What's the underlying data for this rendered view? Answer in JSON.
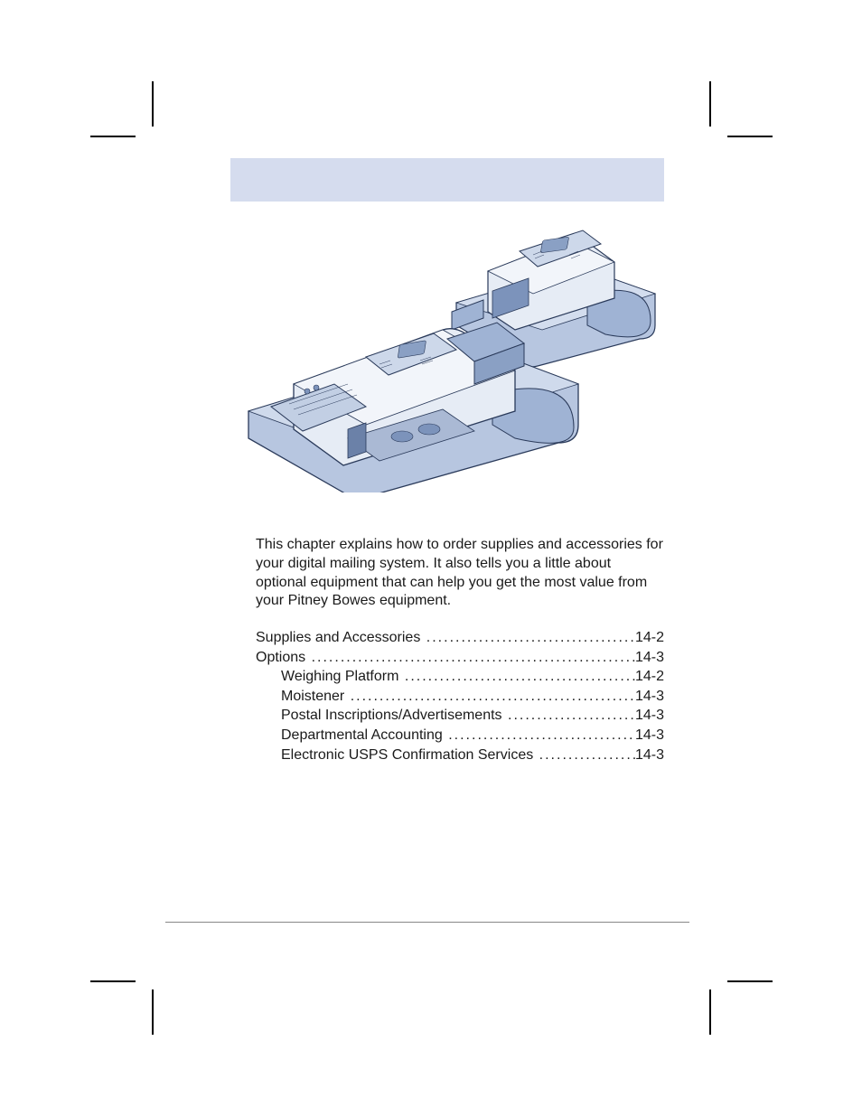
{
  "colors": {
    "header_bar": "#d5dcee",
    "page_bg": "#ffffff",
    "text": "#1a1a1a",
    "rule": "#888888",
    "illus_body": "#b7c6e0",
    "illus_dark": "#7c93bb",
    "illus_light": "#e6ecf5",
    "illus_stroke": "#2a3a5a"
  },
  "typography": {
    "body_fontsize": 16,
    "line_height": 1.3
  },
  "intro": "This chapter explains how to order supplies and accessories for your digital mailing system. It also tells you a little about optional equipment that can help you get the most value from your Pitney Bowes equipment.",
  "toc": [
    {
      "label": "Supplies and Accessories",
      "page": "14-2",
      "indent": 0
    },
    {
      "label": "Options",
      "page": "14-3",
      "indent": 0
    },
    {
      "label": "Weighing Platform",
      "page": "14-2",
      "indent": 1
    },
    {
      "label": "Moistener",
      "page": "14-3",
      "indent": 1
    },
    {
      "label": "Postal Inscriptions/Advertisements",
      "page": "14-3",
      "indent": 1
    },
    {
      "label": "Departmental Accounting",
      "page": "14-3",
      "indent": 1
    },
    {
      "label": "Electronic USPS Confirmation Services",
      "page": "14-3",
      "indent": 1
    }
  ]
}
